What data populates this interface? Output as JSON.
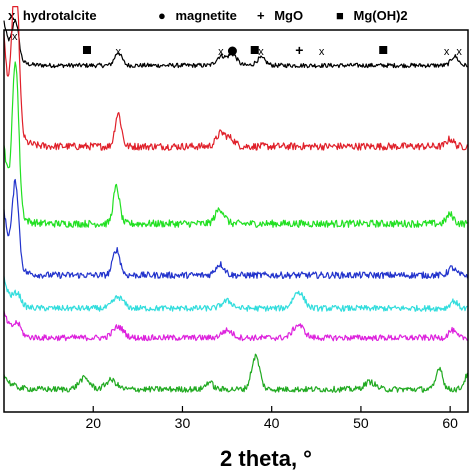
{
  "chart_data": {
    "type": "line",
    "xlabel": "2 theta, °",
    "ylabel": "",
    "xlim": [
      10,
      62
    ],
    "x_ticks": [
      20,
      30,
      40,
      50,
      60
    ],
    "legend": [
      {
        "symbol": "x",
        "label": "hydrotalcite"
      },
      {
        "symbol": "●",
        "label": "magnetite"
      },
      {
        "symbol": "+",
        "label": "MgO"
      },
      {
        "symbol": "■",
        "label": "Mg(OH)2"
      }
    ],
    "phase_markers": [
      {
        "symbol": "x",
        "x": 11.2
      },
      {
        "symbol": "■",
        "x": 19.3
      },
      {
        "symbol": "x",
        "x": 22.8
      },
      {
        "symbol": "x",
        "x": 34.3
      },
      {
        "symbol": "●",
        "x": 35.6
      },
      {
        "symbol": "■",
        "x": 38.1
      },
      {
        "symbol": "x",
        "x": 38.8
      },
      {
        "symbol": "+",
        "x": 43.1
      },
      {
        "symbol": "x",
        "x": 45.6
      },
      {
        "symbol": "■",
        "x": 52.5
      },
      {
        "symbol": "x",
        "x": 59.6
      },
      {
        "symbol": "x",
        "x": 61.0
      }
    ],
    "series": [
      {
        "color": "#000000",
        "baseline": 0.92,
        "noise": 0.006,
        "start_amp": 0.12,
        "peaks": [
          [
            11.3,
            0.1,
            0.35
          ],
          [
            22.8,
            0.035,
            0.4
          ],
          [
            34.3,
            0.025,
            0.5
          ],
          [
            35.6,
            0.03,
            0.5
          ],
          [
            38.8,
            0.02,
            0.5
          ],
          [
            60.5,
            0.025,
            0.4
          ]
        ]
      },
      {
        "color": "#e0202a",
        "baseline": 0.7,
        "noise": 0.01,
        "start_amp": 0.3,
        "peaks": [
          [
            11.3,
            0.45,
            0.35
          ],
          [
            22.8,
            0.09,
            0.35
          ],
          [
            34.3,
            0.035,
            0.5
          ],
          [
            35.4,
            0.02,
            0.5
          ],
          [
            60.0,
            0.02,
            0.4
          ]
        ]
      },
      {
        "color": "#22e022",
        "baseline": 0.49,
        "noise": 0.01,
        "start_amp": 0.22,
        "peaks": [
          [
            11.3,
            0.4,
            0.35
          ],
          [
            22.6,
            0.1,
            0.35
          ],
          [
            34.2,
            0.04,
            0.5
          ],
          [
            60.0,
            0.025,
            0.4
          ]
        ]
      },
      {
        "color": "#2233cc",
        "baseline": 0.35,
        "noise": 0.009,
        "start_amp": 0.18,
        "peaks": [
          [
            11.3,
            0.22,
            0.35
          ],
          [
            22.6,
            0.07,
            0.4
          ],
          [
            34.2,
            0.03,
            0.5
          ],
          [
            60.2,
            0.02,
            0.4
          ]
        ]
      },
      {
        "color": "#33dddd",
        "baseline": 0.26,
        "noise": 0.008,
        "start_amp": 0.08,
        "peaks": [
          [
            11.5,
            0.03,
            0.4
          ],
          [
            22.8,
            0.03,
            0.6
          ],
          [
            35.0,
            0.02,
            0.6
          ],
          [
            43.0,
            0.045,
            0.6
          ],
          [
            60.4,
            0.02,
            0.4
          ]
        ]
      },
      {
        "color": "#dd22dd",
        "baseline": 0.18,
        "noise": 0.008,
        "start_amp": 0.07,
        "peaks": [
          [
            11.5,
            0.03,
            0.4
          ],
          [
            22.8,
            0.03,
            0.6
          ],
          [
            35.0,
            0.02,
            0.6
          ],
          [
            43.0,
            0.035,
            0.6
          ],
          [
            60.2,
            0.02,
            0.4
          ]
        ]
      },
      {
        "color": "#22aa22",
        "baseline": 0.04,
        "noise": 0.008,
        "start_amp": 0.04,
        "peaks": [
          [
            19.0,
            0.03,
            0.6
          ],
          [
            22.0,
            0.025,
            0.6
          ],
          [
            33.0,
            0.02,
            0.4
          ],
          [
            38.2,
            0.09,
            0.45
          ],
          [
            51.0,
            0.02,
            0.6
          ],
          [
            58.8,
            0.06,
            0.35
          ],
          [
            62.0,
            0.04,
            0.4
          ]
        ]
      }
    ]
  }
}
